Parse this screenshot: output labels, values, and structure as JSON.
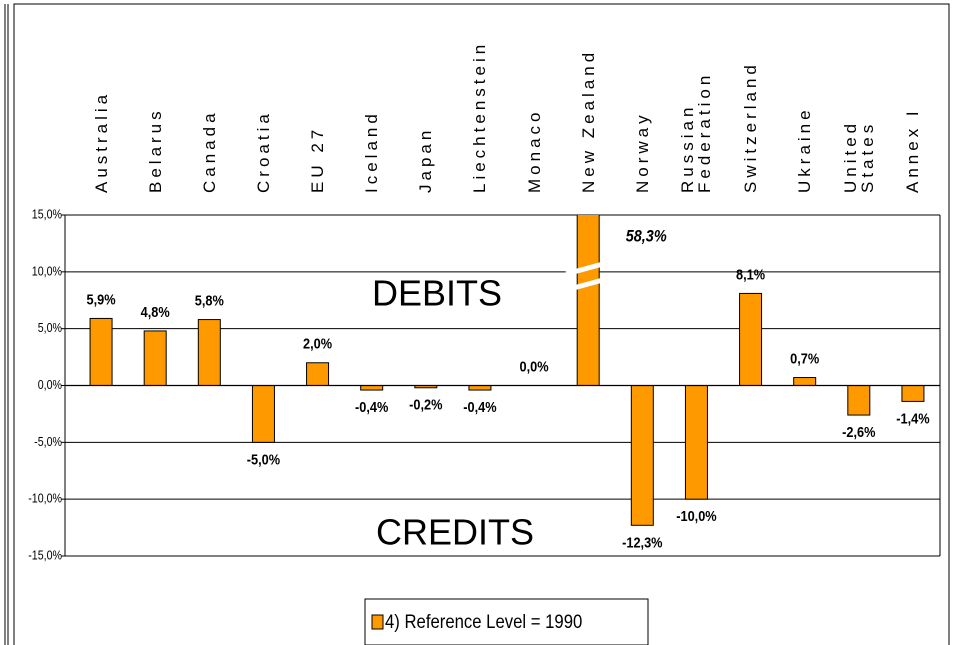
{
  "chart_data": {
    "type": "bar",
    "categories": [
      "Australia",
      "Belarus",
      "Canada",
      "Croatia",
      "EU 27",
      "Iceland",
      "Japan",
      "Liechtenstein",
      "Monaco",
      "New Zealand",
      "Norway",
      "Russian\nFederation",
      "Switzerland",
      "Ukraine",
      "United\nStates",
      "Annex I"
    ],
    "series": [
      {
        "name": "4) Reference Level = 1990",
        "color": "#ff9900",
        "values": [
          5.9,
          4.8,
          5.8,
          -5.0,
          2.0,
          -0.4,
          -0.2,
          -0.4,
          0.0,
          58.3,
          -12.3,
          -10.0,
          8.1,
          0.7,
          -2.6,
          -1.4
        ],
        "value_labels": [
          "5,9%",
          "4,8%",
          "5,8%",
          "-5,0%",
          "2,0%",
          "-0,4%",
          "-0,2%",
          "-0,4%",
          "0,0%",
          "58,3%",
          "-12,3%",
          "-10,0%",
          "8,1%",
          "0,7%",
          "-2,6%",
          "-1,4%"
        ]
      }
    ],
    "ylim": [
      -15,
      15
    ],
    "yticks": [
      {
        "value": -15,
        "label": "-15,0%"
      },
      {
        "value": -10,
        "label": "-10,0%"
      },
      {
        "value": -5,
        "label": "-5,0%"
      },
      {
        "value": 0,
        "label": "0,0%"
      },
      {
        "value": 5,
        "label": "5,0%"
      },
      {
        "value": 10,
        "label": "10,0%"
      },
      {
        "value": 15,
        "label": "15,0%"
      }
    ],
    "grid": true,
    "annotations": [
      "DEBITS",
      "CREDITS"
    ]
  }
}
